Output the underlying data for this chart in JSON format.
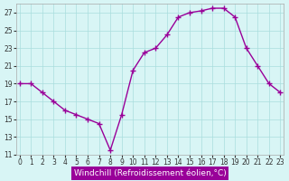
{
  "x": [
    0,
    1,
    2,
    3,
    4,
    5,
    6,
    7,
    8,
    9,
    10,
    11,
    12,
    13,
    14,
    15,
    16,
    17,
    18,
    19,
    20,
    21,
    22,
    23
  ],
  "y": [
    19,
    19,
    18,
    17,
    16,
    15.5,
    15,
    14.5,
    11.5,
    15.5,
    20.5,
    22.5,
    23,
    24.5,
    26.5,
    27,
    27.2,
    27.5,
    27.5,
    26.5,
    23,
    21,
    19,
    18
  ],
  "line_color": "#990099",
  "marker": "+",
  "background_color": "#d8f5f5",
  "grid_color": "#aadddd",
  "xlabel": "Windchill (Refroidissement éolien,°C)",
  "xlabel_color": "#ffffff",
  "xlabel_bg": "#990099",
  "ylim": [
    11,
    28
  ],
  "xlim": [
    0,
    23
  ],
  "yticks": [
    11,
    13,
    15,
    17,
    19,
    21,
    23,
    25,
    27
  ],
  "xticks": [
    0,
    1,
    2,
    3,
    4,
    5,
    6,
    7,
    8,
    9,
    10,
    11,
    12,
    13,
    14,
    15,
    16,
    17,
    18,
    19,
    20,
    21,
    22,
    23
  ],
  "tick_color": "#333333",
  "tick_fontsize": 5.5,
  "xlabel_fontsize": 6.5
}
